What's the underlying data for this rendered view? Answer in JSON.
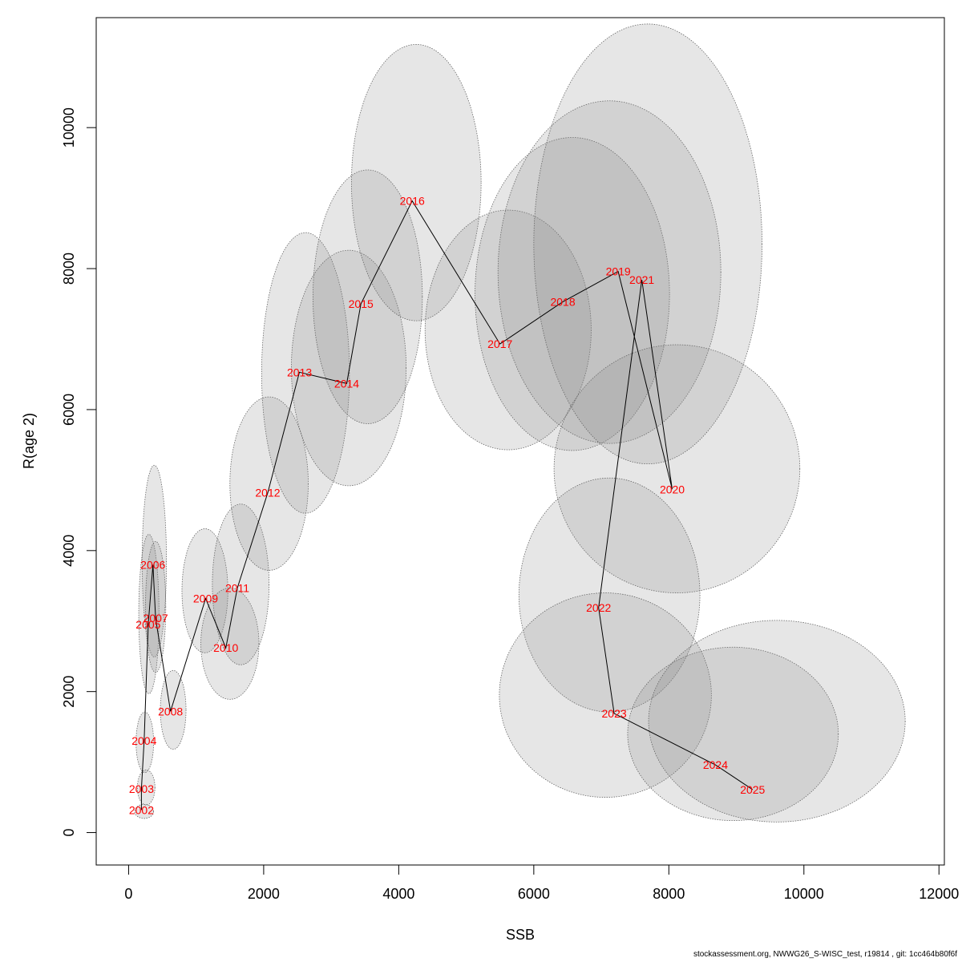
{
  "chart_data": {
    "type": "scatter",
    "xlabel": "SSB",
    "ylabel": "R(age 2)",
    "xlim": [
      -480,
      12080
    ],
    "ylim": [
      -460,
      11560
    ],
    "x_ticks": [
      0,
      2000,
      4000,
      6000,
      8000,
      10000,
      12000
    ],
    "y_ticks": [
      0,
      2000,
      4000,
      6000,
      8000,
      10000
    ],
    "x_tick_labels": [
      "0",
      "2000",
      "4000",
      "6000",
      "8000",
      "10000",
      "12000"
    ],
    "y_tick_labels": [
      "0",
      "2000",
      "4000",
      "6000",
      "8000",
      "10000"
    ],
    "points": [
      {
        "year": "2002",
        "ssb": 190,
        "r": 320
      },
      {
        "year": "2003",
        "ssb": 190,
        "r": 620
      },
      {
        "year": "2004",
        "ssb": 230,
        "r": 1300
      },
      {
        "year": "2005",
        "ssb": 290,
        "r": 2950
      },
      {
        "year": "2006",
        "ssb": 360,
        "r": 3800
      },
      {
        "year": "2007",
        "ssb": 400,
        "r": 3040
      },
      {
        "year": "2008",
        "ssb": 620,
        "r": 1720
      },
      {
        "year": "2009",
        "ssb": 1140,
        "r": 3320
      },
      {
        "year": "2010",
        "ssb": 1440,
        "r": 2620
      },
      {
        "year": "2011",
        "ssb": 1610,
        "r": 3470
      },
      {
        "year": "2012",
        "ssb": 2060,
        "r": 4820
      },
      {
        "year": "2013",
        "ssb": 2530,
        "r": 6530
      },
      {
        "year": "2014",
        "ssb": 3230,
        "r": 6370
      },
      {
        "year": "2015",
        "ssb": 3440,
        "r": 7500
      },
      {
        "year": "2016",
        "ssb": 4200,
        "r": 8960
      },
      {
        "year": "2017",
        "ssb": 5500,
        "r": 6930
      },
      {
        "year": "2018",
        "ssb": 6430,
        "r": 7530
      },
      {
        "year": "2019",
        "ssb": 7250,
        "r": 7960
      },
      {
        "year": "2020",
        "ssb": 8050,
        "r": 4870
      },
      {
        "year": "2021",
        "ssb": 7600,
        "r": 7840
      },
      {
        "year": "2022",
        "ssb": 6960,
        "r": 3190
      },
      {
        "year": "2023",
        "ssb": 7190,
        "r": 1690
      },
      {
        "year": "2024",
        "ssb": 8690,
        "r": 960
      },
      {
        "year": "2025",
        "ssb": 9240,
        "r": 610
      }
    ],
    "ellipses": [
      {
        "year": "2002",
        "cx": 230,
        "cy": 300,
        "rx": 140,
        "ry": 100
      },
      {
        "year": "2003",
        "cx": 260,
        "cy": 640,
        "rx": 130,
        "ry": 250
      },
      {
        "year": "2004",
        "cx": 240,
        "cy": 1280,
        "rx": 130,
        "ry": 430
      },
      {
        "year": "2005",
        "cx": 300,
        "cy": 3100,
        "rx": 150,
        "ry": 1130
      },
      {
        "year": "2006",
        "cx": 380,
        "cy": 3850,
        "rx": 180,
        "ry": 1360
      },
      {
        "year": "2007",
        "cx": 400,
        "cy": 3200,
        "rx": 150,
        "ry": 930
      },
      {
        "year": "2008",
        "cx": 660,
        "cy": 1740,
        "rx": 190,
        "ry": 560
      },
      {
        "year": "2009",
        "cx": 1130,
        "cy": 3430,
        "rx": 340,
        "ry": 880
      },
      {
        "year": "2010",
        "cx": 1500,
        "cy": 2680,
        "rx": 430,
        "ry": 790
      },
      {
        "year": "2011",
        "cx": 1660,
        "cy": 3520,
        "rx": 420,
        "ry": 1140
      },
      {
        "year": "2012",
        "cx": 2080,
        "cy": 4950,
        "rx": 580,
        "ry": 1230
      },
      {
        "year": "2013",
        "cx": 2620,
        "cy": 6520,
        "rx": 650,
        "ry": 1990
      },
      {
        "year": "2014",
        "cx": 3260,
        "cy": 6590,
        "rx": 850,
        "ry": 1670
      },
      {
        "year": "2015",
        "cx": 3540,
        "cy": 7600,
        "rx": 810,
        "ry": 1800
      },
      {
        "year": "2016",
        "cx": 4260,
        "cy": 9220,
        "rx": 960,
        "ry": 1960
      },
      {
        "year": "2017",
        "cx": 5620,
        "cy": 7130,
        "rx": 1230,
        "ry": 1700
      },
      {
        "year": "2018",
        "cx": 6570,
        "cy": 7640,
        "rx": 1440,
        "ry": 2220
      },
      {
        "year": "2019",
        "cx": 7120,
        "cy": 7950,
        "rx": 1650,
        "ry": 2430
      },
      {
        "year": "2020",
        "cx": 8120,
        "cy": 5160,
        "rx": 1820,
        "ry": 1760
      },
      {
        "year": "2021",
        "cx": 7690,
        "cy": 8350,
        "rx": 1690,
        "ry": 3120
      },
      {
        "year": "2022",
        "cx": 7120,
        "cy": 3370,
        "rx": 1340,
        "ry": 1660
      },
      {
        "year": "2023",
        "cx": 7060,
        "cy": 1950,
        "rx": 1570,
        "ry": 1450
      },
      {
        "year": "2024",
        "cx": 8950,
        "cy": 1400,
        "rx": 1560,
        "ry": 1230
      },
      {
        "year": "2025",
        "cx": 9600,
        "cy": 1580,
        "rx": 1900,
        "ry": 1430
      }
    ]
  },
  "footer": {
    "text": "stockassessment.org, NWWG26_S-WISC_test, r19814 , git: 1cc464b80f6f"
  }
}
